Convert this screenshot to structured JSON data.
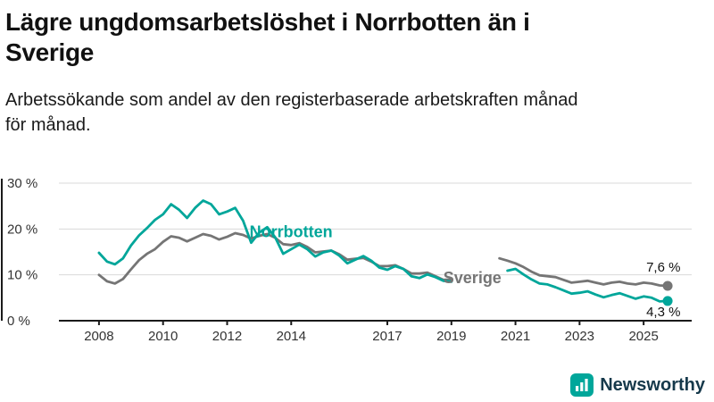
{
  "header": {
    "title": "Lägre ungdomsarbetslöshet i Norrbotten än i Sverige",
    "title_lines": [
      "Lägre ungdomsarbetslöshet i Norrbotten än i",
      "Sverige"
    ],
    "subtitle": "Arbetssökande som andel av den registerbaserade arbetskraften månad för månad.",
    "subtitle_lines": [
      "Arbetssökande som andel av den registerbaserade arbetskraften månad",
      "för månad."
    ]
  },
  "footer": {
    "brand": "Newsworthy",
    "logo_icon": "bar-chart-icon",
    "brand_icon_color": "#00A69A",
    "brand_text_color": "#16394B"
  },
  "chart_data": {
    "type": "line",
    "title": "Lägre ungdomsarbetslöshet i Norrbotten än i Sverige",
    "subtitle": "Arbetssökande som andel av den registerbaserade arbetskraften månad för månad.",
    "xlabel": "",
    "ylabel": "",
    "unit": "%",
    "xlim": [
      2007.0,
      2026.5
    ],
    "ylim": [
      0,
      30
    ],
    "yticks": [
      0,
      10,
      20,
      30
    ],
    "ytick_labels": [
      "0 %",
      "10 %",
      "20 %",
      "30 %"
    ],
    "xticks": [
      2008,
      2010,
      2012,
      2014,
      2017,
      2019,
      2021,
      2023,
      2025
    ],
    "grid": true,
    "legend": "inline-labels",
    "colors": {
      "norrbotten": "#00A69A",
      "sverige": "#757575",
      "grid": "#d9d9d9",
      "axis": "#1a1a1a"
    },
    "annotations": [
      {
        "text": "Norrbotten",
        "x": 2012.7,
        "y": 18.2,
        "color": "#00A69A"
      },
      {
        "text": "Sverige",
        "x": 2018.75,
        "y": 8.2,
        "color": "#757575"
      }
    ],
    "series": [
      {
        "name": "Sverige",
        "color": "#757575",
        "end_value": 7.6,
        "end_label": "7,6 %",
        "end_label_offset": [
          -24,
          -16
        ],
        "segments": [
          [
            [
              2008.0,
              10.0
            ],
            [
              2008.25,
              8.6
            ],
            [
              2008.5,
              8.1
            ],
            [
              2008.75,
              9.1
            ],
            [
              2009.0,
              11.2
            ],
            [
              2009.25,
              13.2
            ],
            [
              2009.5,
              14.6
            ],
            [
              2009.75,
              15.6
            ],
            [
              2010.0,
              17.2
            ],
            [
              2010.25,
              18.4
            ],
            [
              2010.5,
              18.1
            ],
            [
              2010.75,
              17.3
            ],
            [
              2011.0,
              18.1
            ],
            [
              2011.25,
              18.9
            ],
            [
              2011.5,
              18.5
            ],
            [
              2011.75,
              17.7
            ],
            [
              2012.0,
              18.3
            ],
            [
              2012.25,
              19.1
            ],
            [
              2012.5,
              18.7
            ],
            [
              2012.75,
              17.9
            ],
            [
              2013.0,
              18.5
            ],
            [
              2013.25,
              18.9
            ],
            [
              2013.5,
              18.1
            ],
            [
              2013.75,
              16.7
            ],
            [
              2014.0,
              16.5
            ],
            [
              2014.25,
              16.9
            ],
            [
              2014.5,
              16.1
            ],
            [
              2014.75,
              14.9
            ],
            [
              2015.0,
              15.1
            ],
            [
              2015.25,
              15.3
            ],
            [
              2015.5,
              14.5
            ],
            [
              2015.75,
              13.3
            ],
            [
              2016.0,
              13.5
            ],
            [
              2016.25,
              13.7
            ],
            [
              2016.5,
              12.9
            ],
            [
              2016.75,
              11.9
            ],
            [
              2017.0,
              11.9
            ],
            [
              2017.25,
              12.1
            ],
            [
              2017.5,
              11.3
            ],
            [
              2017.75,
              10.3
            ],
            [
              2018.0,
              10.3
            ],
            [
              2018.25,
              10.5
            ],
            [
              2018.5,
              9.7
            ],
            [
              2018.75,
              8.9
            ],
            [
              2019.0,
              9.0
            ]
          ],
          [
            [
              2020.5,
              13.6
            ],
            [
              2020.75,
              13.1
            ],
            [
              2021.0,
              12.5
            ],
            [
              2021.25,
              11.7
            ],
            [
              2021.5,
              10.7
            ],
            [
              2021.75,
              9.9
            ],
            [
              2022.0,
              9.7
            ],
            [
              2022.25,
              9.5
            ],
            [
              2022.5,
              8.9
            ],
            [
              2022.75,
              8.3
            ],
            [
              2023.0,
              8.5
            ],
            [
              2023.25,
              8.7
            ],
            [
              2023.5,
              8.3
            ],
            [
              2023.75,
              7.9
            ],
            [
              2024.0,
              8.3
            ],
            [
              2024.25,
              8.5
            ],
            [
              2024.5,
              8.1
            ],
            [
              2024.75,
              7.9
            ],
            [
              2025.0,
              8.3
            ],
            [
              2025.25,
              8.1
            ],
            [
              2025.5,
              7.7
            ],
            [
              2025.75,
              7.6
            ]
          ]
        ]
      },
      {
        "name": "Norrbotten",
        "color": "#00A69A",
        "end_value": 4.3,
        "end_label": "4,3 %",
        "end_label_offset": [
          -24,
          17
        ],
        "segments": [
          [
            [
              2008.0,
              14.8
            ],
            [
              2008.25,
              12.9
            ],
            [
              2008.5,
              12.3
            ],
            [
              2008.75,
              13.6
            ],
            [
              2009.0,
              16.4
            ],
            [
              2009.25,
              18.6
            ],
            [
              2009.5,
              20.2
            ],
            [
              2009.75,
              22.0
            ],
            [
              2010.0,
              23.2
            ],
            [
              2010.25,
              25.4
            ],
            [
              2010.5,
              24.2
            ],
            [
              2010.75,
              22.4
            ],
            [
              2011.0,
              24.6
            ],
            [
              2011.25,
              26.2
            ],
            [
              2011.5,
              25.4
            ],
            [
              2011.75,
              23.2
            ],
            [
              2012.0,
              23.8
            ],
            [
              2012.25,
              24.6
            ],
            [
              2012.5,
              21.8
            ],
            [
              2012.75,
              17.0
            ],
            [
              2013.0,
              19.2
            ],
            [
              2013.25,
              20.4
            ],
            [
              2013.5,
              18.2
            ],
            [
              2013.75,
              14.6
            ],
            [
              2014.0,
              15.6
            ],
            [
              2014.25,
              16.6
            ],
            [
              2014.5,
              15.6
            ],
            [
              2014.75,
              14.0
            ],
            [
              2015.0,
              14.9
            ],
            [
              2015.25,
              15.3
            ],
            [
              2015.5,
              14.2
            ],
            [
              2015.75,
              12.5
            ],
            [
              2016.0,
              13.3
            ],
            [
              2016.25,
              14.1
            ],
            [
              2016.5,
              13.1
            ],
            [
              2016.75,
              11.6
            ],
            [
              2017.0,
              11.1
            ],
            [
              2017.25,
              11.9
            ],
            [
              2017.5,
              11.3
            ],
            [
              2017.75,
              9.7
            ],
            [
              2018.0,
              9.3
            ],
            [
              2018.25,
              10.1
            ],
            [
              2018.5,
              9.5
            ],
            [
              2018.75,
              8.7
            ],
            [
              2019.0,
              8.5
            ]
          ],
          [
            [
              2020.75,
              10.9
            ],
            [
              2021.0,
              11.3
            ],
            [
              2021.25,
              10.1
            ],
            [
              2021.5,
              9.0
            ],
            [
              2021.75,
              8.1
            ],
            [
              2022.0,
              7.9
            ],
            [
              2022.25,
              7.3
            ],
            [
              2022.5,
              6.6
            ],
            [
              2022.75,
              5.9
            ],
            [
              2023.0,
              6.1
            ],
            [
              2023.25,
              6.4
            ],
            [
              2023.5,
              5.7
            ],
            [
              2023.75,
              5.1
            ],
            [
              2024.0,
              5.6
            ],
            [
              2024.25,
              6.0
            ],
            [
              2024.5,
              5.4
            ],
            [
              2024.75,
              4.8
            ],
            [
              2025.0,
              5.3
            ],
            [
              2025.25,
              5.0
            ],
            [
              2025.5,
              4.2
            ],
            [
              2025.75,
              4.3
            ]
          ]
        ]
      }
    ]
  }
}
